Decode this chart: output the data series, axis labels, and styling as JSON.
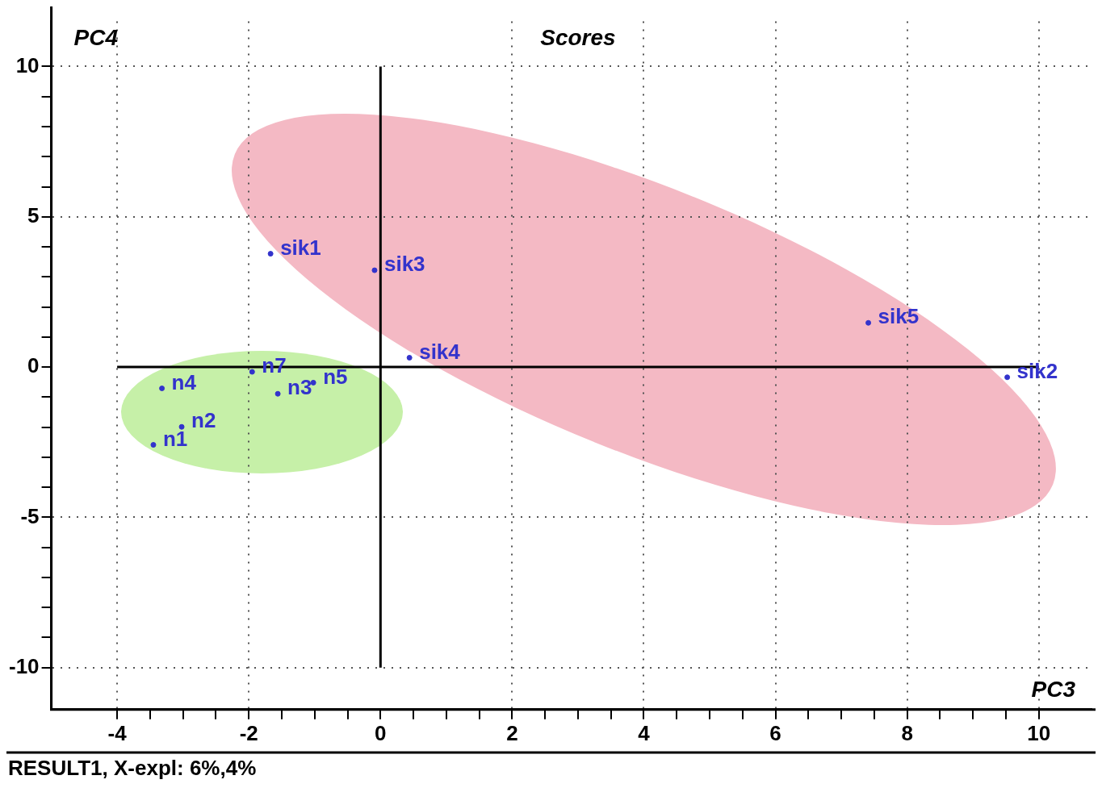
{
  "chart_data": {
    "type": "scatter",
    "title": "Scores",
    "xlabel": "PC3",
    "ylabel": "PC4",
    "annotations": [
      "RESULT1, X-expl: 6%,4%"
    ],
    "series": [
      {
        "name": "sik1",
        "color": "#3333cc",
        "x": [
          -1.67
        ],
        "values": [
          3.77
        ]
      },
      {
        "name": "sik3",
        "color": "#3333cc",
        "x": [
          -0.09
        ],
        "values": [
          3.22
        ]
      },
      {
        "name": "sik4",
        "color": "#3333cc",
        "x": [
          0.44
        ],
        "values": [
          0.31
        ]
      },
      {
        "name": "sik5",
        "color": "#3333cc",
        "x": [
          7.41
        ],
        "values": [
          1.47
        ]
      },
      {
        "name": "sik2",
        "color": "#3333cc",
        "x": [
          9.52
        ],
        "values": [
          -0.34
        ]
      },
      {
        "name": "n4",
        "color": "#3333cc",
        "x": [
          -3.32
        ],
        "values": [
          -0.71
        ]
      },
      {
        "name": "n1",
        "color": "#3333cc",
        "x": [
          -3.45
        ],
        "values": [
          -2.59
        ]
      },
      {
        "name": "n2",
        "color": "#3333cc",
        "x": [
          -3.02
        ],
        "values": [
          -1.99
        ]
      },
      {
        "name": "n7",
        "color": "#3333cc",
        "x": [
          -1.95
        ],
        "values": [
          -0.16
        ]
      },
      {
        "name": "n3",
        "color": "#3333cc",
        "x": [
          -1.56
        ],
        "values": [
          -0.89
        ]
      },
      {
        "name": "n5",
        "color": "#3333cc",
        "x": [
          -1.02
        ],
        "values": [
          -0.52
        ]
      }
    ],
    "xlim": [
      -5,
      10.8
    ],
    "ylim": [
      -11.4,
      11.5
    ],
    "xticks": [
      -4,
      {
        "value": -3.5,
        "label": null
      },
      {
        "value": -3,
        "label": null
      },
      {
        "value": -2.5,
        "label": null
      },
      -2,
      {
        "value": -1.5,
        "label": null
      },
      {
        "value": -1,
        "label": null
      },
      {
        "value": -0.5,
        "label": null
      },
      0,
      {
        "value": 0.5,
        "label": null
      },
      {
        "value": 1,
        "label": null
      },
      {
        "value": 1.5,
        "label": null
      },
      2,
      {
        "value": 2.5,
        "label": null
      },
      {
        "value": 3,
        "label": null
      },
      {
        "value": 3.5,
        "label": null
      },
      4,
      {
        "value": 4.5,
        "label": null
      },
      {
        "value": 5,
        "label": null
      },
      {
        "value": 5.5,
        "label": null
      },
      6,
      {
        "value": 6.5,
        "label": null
      },
      {
        "value": 7,
        "label": null
      },
      {
        "value": 7.5,
        "label": null
      },
      8,
      {
        "value": 8.5,
        "label": null
      },
      {
        "value": 9,
        "label": null
      },
      {
        "value": 9.5,
        "label": null
      },
      10
    ],
    "yticks": [
      -10,
      {
        "value": -9,
        "label": null
      },
      {
        "value": -8,
        "label": null
      },
      {
        "value": -7,
        "label": null
      },
      {
        "value": -6,
        "label": null
      },
      -5,
      {
        "value": -4,
        "label": null
      },
      {
        "value": -3,
        "label": null
      },
      {
        "value": -2,
        "label": null
      },
      {
        "value": -1,
        "label": null
      },
      0,
      {
        "value": 1,
        "label": null
      },
      {
        "value": 2,
        "label": null
      },
      {
        "value": 3,
        "label": null
      },
      {
        "value": 4,
        "label": null
      },
      5,
      {
        "value": 6,
        "label": null
      },
      {
        "value": 7,
        "label": null
      },
      {
        "value": 8,
        "label": null
      },
      {
        "value": 9,
        "label": null
      },
      10
    ],
    "grid": true,
    "legend": false,
    "marker": "circle"
  }
}
